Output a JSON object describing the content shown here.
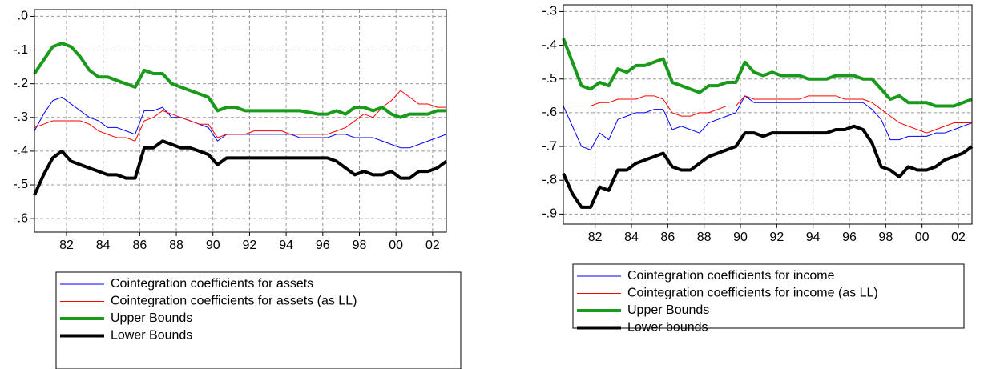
{
  "chart_data": [
    {
      "type": "line",
      "x": [
        1980.25,
        1980.75,
        1981.25,
        1981.75,
        1982.25,
        1982.75,
        1983.25,
        1983.75,
        1984.25,
        1984.75,
        1985.25,
        1985.75,
        1986.25,
        1986.75,
        1987.25,
        1987.75,
        1988.25,
        1988.75,
        1989.25,
        1989.75,
        1990.25,
        1990.75,
        1991.25,
        1991.75,
        1992.25,
        1992.75,
        1993.25,
        1993.75,
        1994.25,
        1994.75,
        1995.25,
        1995.75,
        1996.25,
        1996.75,
        1997.25,
        1997.75,
        1998.25,
        1998.75,
        1999.25,
        1999.75,
        2000.25,
        2000.75,
        2001.25,
        2001.75,
        2002.25,
        2002.75
      ],
      "xlim": [
        1980.25,
        2002.75
      ],
      "xticks": [
        {
          "value": 1982,
          "label": "82"
        },
        {
          "value": 1984,
          "label": "84"
        },
        {
          "value": 1986,
          "label": "86"
        },
        {
          "value": 1988,
          "label": "88"
        },
        {
          "value": 1990,
          "label": "90"
        },
        {
          "value": 1992,
          "label": "92"
        },
        {
          "value": 1994,
          "label": "94"
        },
        {
          "value": 1996,
          "label": "96"
        },
        {
          "value": 1998,
          "label": "98"
        },
        {
          "value": 2000,
          "label": "00"
        },
        {
          "value": 2002,
          "label": "02"
        }
      ],
      "ylim": [
        -0.64,
        0.02
      ],
      "yticks": [
        {
          "value": 0,
          "label": ".0"
        },
        {
          "value": -0.1,
          "label": "-.1"
        },
        {
          "value": -0.2,
          "label": "-.2"
        },
        {
          "value": -0.3,
          "label": "-.3"
        },
        {
          "value": -0.4,
          "label": "-.4"
        },
        {
          "value": -0.5,
          "label": "-.5"
        },
        {
          "value": -0.6,
          "label": "-.6"
        }
      ],
      "grid": true,
      "series": [
        {
          "name": "Cointegration coefficients for assets",
          "color": "#0000ff",
          "width": 1,
          "values": [
            -0.34,
            -0.29,
            -0.25,
            -0.24,
            -0.26,
            -0.28,
            -0.3,
            -0.31,
            -0.33,
            -0.33,
            -0.34,
            -0.35,
            -0.28,
            -0.28,
            -0.27,
            -0.3,
            -0.3,
            -0.31,
            -0.32,
            -0.33,
            -0.37,
            -0.35,
            -0.35,
            -0.35,
            -0.35,
            -0.35,
            -0.35,
            -0.35,
            -0.35,
            -0.36,
            -0.36,
            -0.36,
            -0.36,
            -0.35,
            -0.35,
            -0.36,
            -0.36,
            -0.36,
            -0.37,
            -0.38,
            -0.39,
            -0.39,
            -0.38,
            -0.37,
            -0.36,
            -0.35
          ]
        },
        {
          "name": "Cointegration coefficients for assets (as LL)",
          "color": "#ff0000",
          "width": 1,
          "values": [
            -0.33,
            -0.32,
            -0.31,
            -0.31,
            -0.31,
            -0.31,
            -0.32,
            -0.34,
            -0.35,
            -0.36,
            -0.36,
            -0.37,
            -0.31,
            -0.3,
            -0.28,
            -0.29,
            -0.3,
            -0.31,
            -0.32,
            -0.32,
            -0.36,
            -0.35,
            -0.35,
            -0.35,
            -0.34,
            -0.34,
            -0.34,
            -0.34,
            -0.35,
            -0.35,
            -0.35,
            -0.35,
            -0.35,
            -0.34,
            -0.33,
            -0.31,
            -0.29,
            -0.3,
            -0.27,
            -0.25,
            -0.22,
            -0.24,
            -0.26,
            -0.26,
            -0.27,
            -0.27
          ]
        },
        {
          "name": "Upper Bounds",
          "color": "#1a9a1a",
          "width": 4,
          "values": [
            -0.17,
            -0.13,
            -0.09,
            -0.08,
            -0.09,
            -0.12,
            -0.16,
            -0.18,
            -0.18,
            -0.19,
            -0.2,
            -0.21,
            -0.16,
            -0.17,
            -0.17,
            -0.2,
            -0.21,
            -0.22,
            -0.23,
            -0.24,
            -0.28,
            -0.27,
            -0.27,
            -0.28,
            -0.28,
            -0.28,
            -0.28,
            -0.28,
            -0.28,
            -0.28,
            -0.285,
            -0.29,
            -0.29,
            -0.28,
            -0.29,
            -0.27,
            -0.27,
            -0.28,
            -0.27,
            -0.29,
            -0.3,
            -0.29,
            -0.29,
            -0.29,
            -0.28,
            -0.28
          ]
        },
        {
          "name": "Lower Bounds",
          "color": "#000000",
          "width": 4,
          "values": [
            -0.53,
            -0.47,
            -0.42,
            -0.4,
            -0.43,
            -0.44,
            -0.45,
            -0.46,
            -0.47,
            -0.47,
            -0.48,
            -0.48,
            -0.39,
            -0.39,
            -0.37,
            -0.38,
            -0.39,
            -0.39,
            -0.4,
            -0.41,
            -0.44,
            -0.42,
            -0.42,
            -0.42,
            -0.42,
            -0.42,
            -0.42,
            -0.42,
            -0.42,
            -0.42,
            -0.42,
            -0.42,
            -0.42,
            -0.43,
            -0.45,
            -0.47,
            -0.46,
            -0.47,
            -0.47,
            -0.46,
            -0.48,
            -0.48,
            -0.46,
            -0.46,
            -0.45,
            -0.43
          ]
        }
      ]
    },
    {
      "type": "line",
      "x": [
        1980.25,
        1980.75,
        1981.25,
        1981.75,
        1982.25,
        1982.75,
        1983.25,
        1983.75,
        1984.25,
        1984.75,
        1985.25,
        1985.75,
        1986.25,
        1986.75,
        1987.25,
        1987.75,
        1988.25,
        1988.75,
        1989.25,
        1989.75,
        1990.25,
        1990.75,
        1991.25,
        1991.75,
        1992.25,
        1992.75,
        1993.25,
        1993.75,
        1994.25,
        1994.75,
        1995.25,
        1995.75,
        1996.25,
        1996.75,
        1997.25,
        1997.75,
        1998.25,
        1998.75,
        1999.25,
        1999.75,
        2000.25,
        2000.75,
        2001.25,
        2001.75,
        2002.25,
        2002.75
      ],
      "xlim": [
        1980.25,
        2002.75
      ],
      "xticks": [
        {
          "value": 1982,
          "label": "82"
        },
        {
          "value": 1984,
          "label": "84"
        },
        {
          "value": 1986,
          "label": "86"
        },
        {
          "value": 1988,
          "label": "88"
        },
        {
          "value": 1990,
          "label": "90"
        },
        {
          "value": 1992,
          "label": "92"
        },
        {
          "value": 1994,
          "label": "94"
        },
        {
          "value": 1996,
          "label": "96"
        },
        {
          "value": 1998,
          "label": "98"
        },
        {
          "value": 2000,
          "label": "00"
        },
        {
          "value": 2002,
          "label": "02"
        }
      ],
      "ylim": [
        -0.93,
        -0.28
      ],
      "yticks": [
        {
          "value": -0.3,
          "label": "-.3"
        },
        {
          "value": -0.4,
          "label": "-.4"
        },
        {
          "value": -0.5,
          "label": "-.5"
        },
        {
          "value": -0.6,
          "label": "-.6"
        },
        {
          "value": -0.7,
          "label": "-.7"
        },
        {
          "value": -0.8,
          "label": "-.8"
        },
        {
          "value": -0.9,
          "label": "-.9"
        }
      ],
      "grid": true,
      "series": [
        {
          "name": "Cointegration coefficients for income",
          "color": "#0000ff",
          "width": 1,
          "values": [
            -0.58,
            -0.64,
            -0.7,
            -0.71,
            -0.66,
            -0.68,
            -0.62,
            -0.61,
            -0.6,
            -0.6,
            -0.59,
            -0.59,
            -0.65,
            -0.64,
            -0.65,
            -0.66,
            -0.63,
            -0.62,
            -0.61,
            -0.6,
            -0.55,
            -0.57,
            -0.57,
            -0.57,
            -0.57,
            -0.57,
            -0.57,
            -0.57,
            -0.57,
            -0.57,
            -0.57,
            -0.57,
            -0.57,
            -0.57,
            -0.59,
            -0.62,
            -0.68,
            -0.68,
            -0.67,
            -0.67,
            -0.67,
            -0.66,
            -0.66,
            -0.65,
            -0.64,
            -0.63
          ]
        },
        {
          "name": "Cointegration coefficients for income (as LL)",
          "color": "#ff0000",
          "width": 1,
          "values": [
            -0.58,
            -0.58,
            -0.58,
            -0.58,
            -0.57,
            -0.57,
            -0.56,
            -0.56,
            -0.56,
            -0.55,
            -0.55,
            -0.56,
            -0.6,
            -0.61,
            -0.61,
            -0.6,
            -0.6,
            -0.59,
            -0.58,
            -0.58,
            -0.55,
            -0.56,
            -0.56,
            -0.56,
            -0.56,
            -0.56,
            -0.56,
            -0.55,
            -0.55,
            -0.55,
            -0.55,
            -0.56,
            -0.56,
            -0.56,
            -0.57,
            -0.59,
            -0.61,
            -0.63,
            -0.64,
            -0.65,
            -0.66,
            -0.65,
            -0.64,
            -0.63,
            -0.63,
            -0.63
          ]
        },
        {
          "name": "Upper Bounds",
          "color": "#1a9a1a",
          "width": 4,
          "values": [
            -0.38,
            -0.45,
            -0.52,
            -0.53,
            -0.51,
            -0.52,
            -0.47,
            -0.48,
            -0.46,
            -0.46,
            -0.45,
            -0.44,
            -0.51,
            -0.52,
            -0.53,
            -0.54,
            -0.52,
            -0.52,
            -0.51,
            -0.51,
            -0.45,
            -0.48,
            -0.49,
            -0.48,
            -0.49,
            -0.49,
            -0.49,
            -0.5,
            -0.5,
            -0.5,
            -0.49,
            -0.49,
            -0.49,
            -0.5,
            -0.5,
            -0.53,
            -0.56,
            -0.55,
            -0.57,
            -0.57,
            -0.57,
            -0.58,
            -0.58,
            -0.58,
            -0.57,
            -0.56
          ]
        },
        {
          "name": "Lower bounds",
          "color": "#000000",
          "width": 4,
          "values": [
            -0.78,
            -0.84,
            -0.88,
            -0.88,
            -0.82,
            -0.83,
            -0.77,
            -0.77,
            -0.75,
            -0.74,
            -0.73,
            -0.72,
            -0.76,
            -0.77,
            -0.77,
            -0.75,
            -0.73,
            -0.72,
            -0.71,
            -0.7,
            -0.66,
            -0.66,
            -0.67,
            -0.66,
            -0.66,
            -0.66,
            -0.66,
            -0.66,
            -0.66,
            -0.66,
            -0.65,
            -0.65,
            -0.64,
            -0.65,
            -0.69,
            -0.76,
            -0.77,
            -0.79,
            -0.76,
            -0.77,
            -0.77,
            -0.76,
            -0.74,
            -0.73,
            -0.72,
            -0.7
          ]
        }
      ]
    }
  ]
}
